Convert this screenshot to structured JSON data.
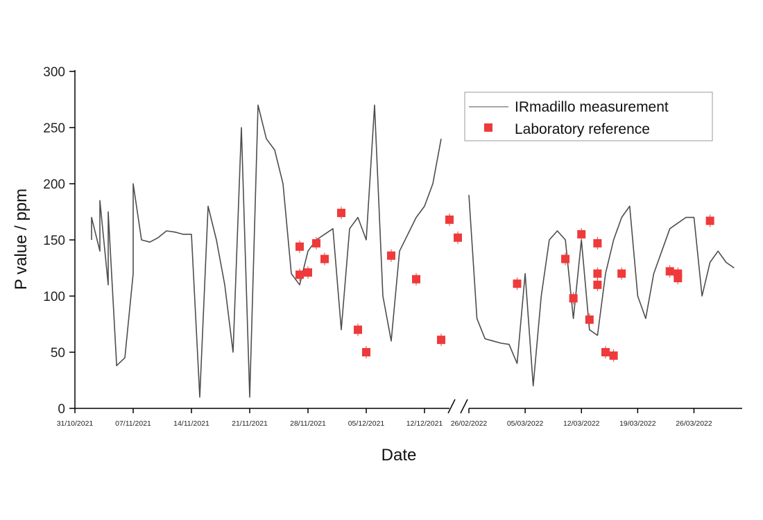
{
  "chart_data": {
    "type": "scatter",
    "title": "",
    "xlabel": "Date",
    "ylabel": "P value / ppm",
    "ylim": [
      0,
      300
    ],
    "y_ticks": [
      "0",
      "50",
      "100",
      "150",
      "200",
      "250",
      "300"
    ],
    "axis_break": "between 12/12/2021 and 26/02/2022",
    "segments": [
      {
        "start": "2021-10-31",
        "end": "2021-12-15",
        "tick_labels": [
          "31/10/2021",
          "07/11/2021",
          "14/11/2021",
          "21/11/2021",
          "28/11/2021",
          "05/12/2021",
          "12/12/2021"
        ]
      },
      {
        "start": "2022-02-26",
        "end": "2022-04-01",
        "tick_labels": [
          "26/02/2022",
          "05/03/2022",
          "12/03/2022",
          "19/03/2022",
          "26/03/2022"
        ]
      }
    ],
    "legend": {
      "placement": "top-right"
    },
    "series": [
      {
        "name": "IRmadillo measurement",
        "style": "line",
        "color": "#4d4d4d",
        "x": [
          "2021-11-02",
          "2021-11-02",
          "2021-11-03",
          "2021-11-03",
          "2021-11-04",
          "2021-11-04",
          "2021-11-05",
          "2021-11-05",
          "2021-11-06",
          "2021-11-07",
          "2021-11-07",
          "2021-11-08",
          "2021-11-09",
          "2021-11-10",
          "2021-11-11",
          "2021-11-12",
          "2021-11-13",
          "2021-11-14",
          "2021-11-15",
          "2021-11-16",
          "2021-11-17",
          "2021-11-18",
          "2021-11-19",
          "2021-11-20",
          "2021-11-21",
          "2021-11-22",
          "2021-11-23",
          "2021-11-24",
          "2021-11-25",
          "2021-11-26",
          "2021-11-27",
          "2021-11-28",
          "2021-11-29",
          "2021-11-30",
          "2021-12-01",
          "2021-12-02",
          "2021-12-03",
          "2021-12-04",
          "2021-12-05",
          "2021-12-06",
          "2021-12-07",
          "2021-12-08",
          "2021-12-09",
          "2021-12-10",
          "2021-12-11",
          "2021-12-12",
          "2021-12-13",
          "2021-12-14",
          "2022-02-26",
          "2022-02-27",
          "2022-02-28",
          "2022-03-01",
          "2022-03-02",
          "2022-03-03",
          "2022-03-04",
          "2022-03-05",
          "2022-03-06",
          "2022-03-07",
          "2022-03-08",
          "2022-03-09",
          "2022-03-10",
          "2022-03-11",
          "2022-03-12",
          "2022-03-13",
          "2022-03-14",
          "2022-03-15",
          "2022-03-16",
          "2022-03-17",
          "2022-03-18",
          "2022-03-19",
          "2022-03-20",
          "2022-03-21",
          "2022-03-22",
          "2022-03-23",
          "2022-03-24",
          "2022-03-25",
          "2022-03-26",
          "2022-03-27",
          "2022-03-28",
          "2022-03-29",
          "2022-03-30",
          "2022-03-31"
        ],
        "y": [
          150,
          170,
          140,
          185,
          110,
          175,
          40,
          38,
          45,
          120,
          200,
          150,
          148,
          152,
          158,
          157,
          155,
          155,
          10,
          180,
          150,
          110,
          50,
          250,
          10,
          270,
          240,
          230,
          200,
          120,
          110,
          140,
          150,
          155,
          160,
          70,
          160,
          170,
          150,
          270,
          100,
          60,
          140,
          155,
          170,
          180,
          200,
          240,
          190,
          80,
          62,
          60,
          58,
          57,
          40,
          120,
          20,
          100,
          150,
          158,
          150,
          80,
          150,
          70,
          65,
          120,
          150,
          170,
          180,
          100,
          80,
          120,
          140,
          160,
          165,
          170,
          170,
          100,
          130,
          140,
          130,
          125
        ]
      },
      {
        "name": "Laboratory reference",
        "style": "markers",
        "color": "#ee3a3a",
        "x": [
          "2021-11-27",
          "2021-11-27",
          "2021-11-28",
          "2021-11-29",
          "2021-11-30",
          "2021-12-02",
          "2021-12-04",
          "2021-12-05",
          "2021-12-08",
          "2021-12-11",
          "2021-12-14",
          "2021-12-15",
          "2021-12-16",
          "2022-03-04",
          "2022-03-10",
          "2022-03-11",
          "2022-03-12",
          "2022-03-13",
          "2022-03-14",
          "2022-03-14",
          "2022-03-14",
          "2022-03-15",
          "2022-03-16",
          "2022-03-17",
          "2022-03-23",
          "2022-03-24",
          "2022-03-24",
          "2022-03-28"
        ],
        "y": [
          119,
          144,
          121,
          147,
          133,
          174,
          70,
          50,
          136,
          115,
          61,
          168,
          152,
          111,
          133,
          98,
          155,
          79,
          120,
          110,
          147,
          50,
          47,
          120,
          122,
          120,
          116,
          167
        ]
      }
    ]
  }
}
